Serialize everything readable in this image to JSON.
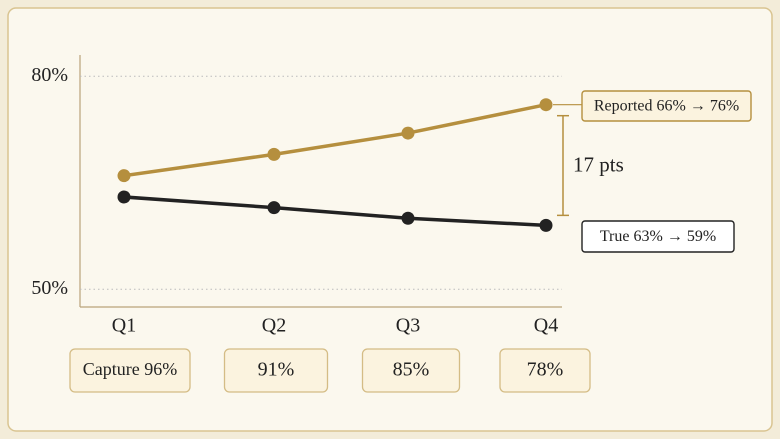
{
  "chart_data": {
    "type": "line",
    "categories": [
      "Q1",
      "Q2",
      "Q3",
      "Q4"
    ],
    "series": [
      {
        "name": "Reported 66% → 76%",
        "color": "#b58f3e",
        "values": [
          66,
          69,
          72,
          76
        ]
      },
      {
        "name": "True 63% → 59%",
        "color": "#222222",
        "values": [
          63,
          61.5,
          60,
          59
        ]
      }
    ],
    "ylim": [
      47.5,
      83
    ],
    "yticks": [
      {
        "value": 50,
        "label": "50%"
      },
      {
        "value": 80,
        "label": "80%"
      }
    ],
    "grid": true,
    "gap_label": "17 pts",
    "capture_labels": [
      "Capture 96%",
      "91%",
      "85%",
      "78%"
    ]
  }
}
